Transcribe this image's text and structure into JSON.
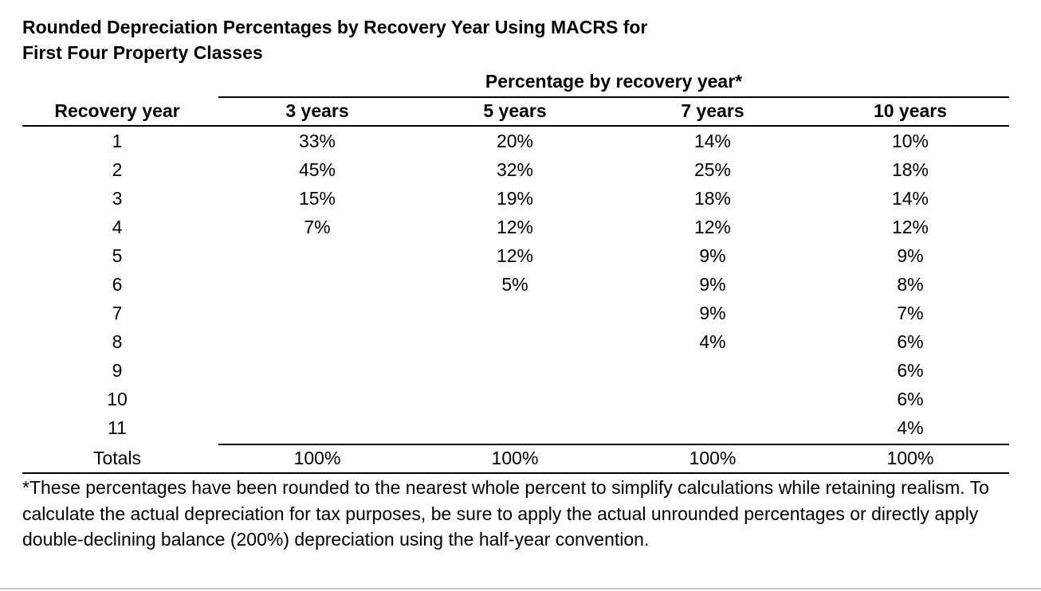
{
  "title_lines": [
    "Rounded Depreciation Percentages by Recovery Year Using MACRS for",
    "First Four Property Classes"
  ],
  "group_header": "Percentage by recovery year*",
  "columns": [
    "Recovery year",
    "3 years",
    "5 years",
    "7 years",
    "10 years"
  ],
  "rows": [
    [
      "1",
      "33%",
      "20%",
      "14%",
      "10%"
    ],
    [
      "2",
      "45%",
      "32%",
      "25%",
      "18%"
    ],
    [
      "3",
      "15%",
      "19%",
      "18%",
      "14%"
    ],
    [
      "4",
      "7%",
      "12%",
      "12%",
      "12%"
    ],
    [
      "5",
      "",
      "12%",
      "9%",
      "9%"
    ],
    [
      "6",
      "",
      "5%",
      "9%",
      "8%"
    ],
    [
      "7",
      "",
      "",
      "9%",
      "7%"
    ],
    [
      "8",
      "",
      "",
      "4%",
      "6%"
    ],
    [
      "9",
      "",
      "",
      "",
      "6%"
    ],
    [
      "10",
      "",
      "",
      "",
      "6%"
    ],
    [
      "11",
      "",
      "",
      "",
      "4%"
    ]
  ],
  "totals": [
    "Totals",
    "100%",
    "100%",
    "100%",
    "100%"
  ],
  "footnote": "*These percentages have been rounded to the nearest whole percent to simplify calculations while retaining realism. To calculate the actual depreciation for tax purposes, be sure to apply the actual unrounded percentages or directly apply double-declining balance (200%) depreciation using the half-year convention."
}
